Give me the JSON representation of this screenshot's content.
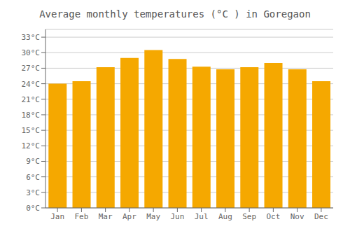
{
  "chart_data": {
    "type": "bar",
    "title": "Average monthly temperatures (°C ) in Goregaon",
    "categories": [
      "Jan",
      "Feb",
      "Mar",
      "Apr",
      "May",
      "Jun",
      "Jul",
      "Aug",
      "Sep",
      "Oct",
      "Nov",
      "Dec"
    ],
    "values": [
      24.0,
      24.5,
      27.2,
      29.0,
      30.5,
      28.8,
      27.3,
      26.8,
      27.2,
      28.0,
      26.8,
      24.5
    ],
    "color": "#F5A800",
    "ylim": [
      0,
      34.5
    ],
    "yticks": [
      {
        "value": 0,
        "label": "0°C"
      },
      {
        "value": 3,
        "label": "3°C"
      },
      {
        "value": 6,
        "label": "6°C"
      },
      {
        "value": 9,
        "label": "9°C"
      },
      {
        "value": 12,
        "label": "12°C"
      },
      {
        "value": 15,
        "label": "15°C"
      },
      {
        "value": 18,
        "label": "18°C"
      },
      {
        "value": 21,
        "label": "21°C"
      },
      {
        "value": 24,
        "label": "24°C"
      },
      {
        "value": 27,
        "label": "27°C"
      },
      {
        "value": 30,
        "label": "30°C"
      },
      {
        "value": 33,
        "label": "33°C"
      }
    ],
    "grid": true
  }
}
